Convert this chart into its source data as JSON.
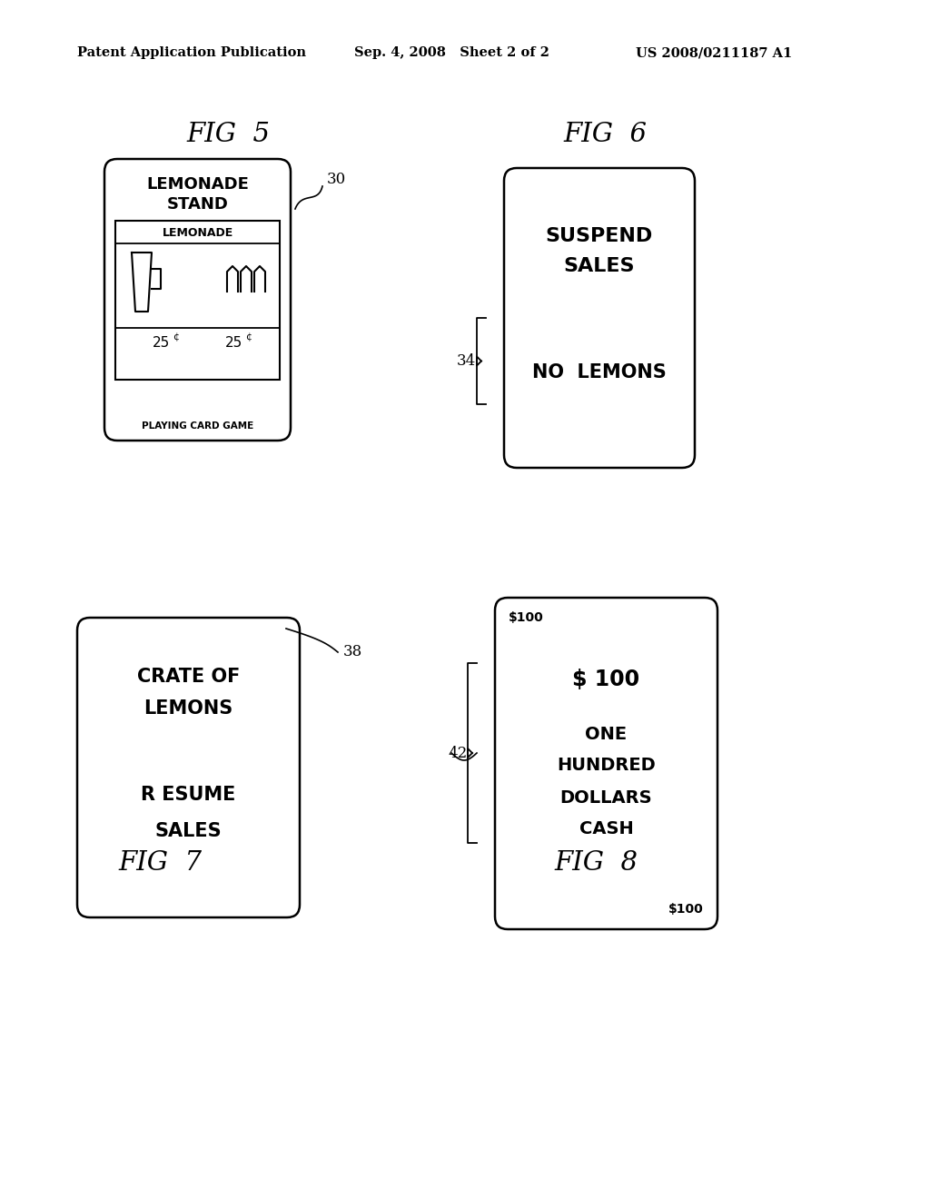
{
  "bg_color": "#ffffff",
  "header_left": "Patent Application Publication",
  "header_mid": "Sep. 4, 2008   Sheet 2 of 2",
  "header_right": "US 2008/0211187 A1",
  "fig5_label": "FIG  5",
  "fig6_label": "FIG  6",
  "fig7_label": "FIG  7",
  "fig8_label": "FIG  8",
  "card5_title_line1": "LEMONADE",
  "card5_title_line2": "STAND",
  "card5_sub": "LEMONADE",
  "card5_price_left": "25",
  "card5_price_right": "25",
  "card5_bottom": "PLAYING CARD GAME",
  "card5_ref": "30",
  "card6_line1": "SUSPEND",
  "card6_line2": "SALES",
  "card6_line3": "NO  LEMONS",
  "card6_ref": "34",
  "card7_line1": "CRATE OF",
  "card7_line2": "LEMONS",
  "card7_line3": "R ESUME",
  "card7_line4": "SALES",
  "card7_ref": "38",
  "card8_top": "$100",
  "card8_line1": "$ 100",
  "card8_line2": "ONE",
  "card8_line3": "HUNDRED",
  "card8_line4": "DOLLARS",
  "card8_line5": "CASH",
  "card8_bottom": "$100",
  "card8_ref": "42",
  "lw_card": 1.8,
  "lw_inner": 1.2
}
